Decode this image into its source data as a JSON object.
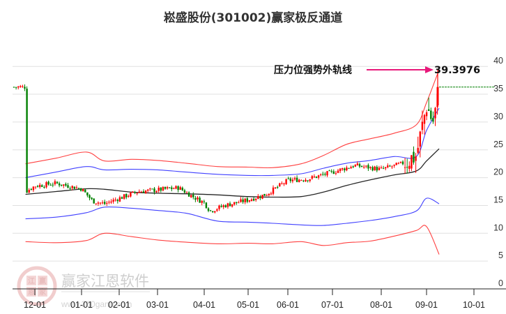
{
  "title": "崧盛股份(301002)赢家极反通道",
  "annotation": {
    "label": "压力位强势外轨线",
    "value": "39.3976",
    "arrow_color": "#e8197a"
  },
  "watermark": {
    "name": "赢家江恩软件",
    "url": "www.360gann.com",
    "logo_chars": [
      "江",
      "赢",
      "恩",
      "家"
    ]
  },
  "colors": {
    "up": "#ff0000",
    "down": "#008000",
    "outer_band": "#ff0000",
    "inner_band": "#0000ff",
    "mid_line": "#000000",
    "resistance_line": "#008000",
    "grid": "#e0e0e0"
  },
  "chart_data": {
    "type": "candlestick",
    "title": "崧盛股份(301002)赢家极反通道",
    "xlabel": "",
    "ylabel": "",
    "ylim": [
      0,
      40
    ],
    "yticks": [
      0,
      5,
      10,
      15,
      20,
      25,
      30,
      35,
      40
    ],
    "xticks": [
      "12-01",
      "01-01",
      "02-01",
      "03-01",
      "04-01",
      "05-01",
      "06-01",
      "07-01",
      "08-01",
      "09-01",
      "10-01"
    ],
    "grid": true,
    "annotations": [
      {
        "text": "压力位强势外轨线",
        "value": 39.3976,
        "type": "arrow-label"
      }
    ],
    "resistance_level": 36.3,
    "series": [
      {
        "name": "outer_upper_band",
        "color": "#ff0000",
        "x": [
          "11-25",
          "12-15",
          "01-05",
          "01-20",
          "02-10",
          "03-01",
          "03-20",
          "04-10",
          "05-01",
          "05-20",
          "06-10",
          "06-25",
          "07-10",
          "07-25",
          "08-10",
          "08-25",
          "09-01",
          "09-10"
        ],
        "values": [
          22.5,
          23.5,
          24.6,
          23.0,
          23.3,
          23.1,
          22.6,
          22.0,
          21.9,
          21.8,
          22.5,
          24.0,
          26.0,
          27.0,
          28.0,
          29.5,
          33.5,
          39.4
        ]
      },
      {
        "name": "inner_upper_band",
        "color": "#0000ff",
        "x": [
          "11-25",
          "12-15",
          "01-05",
          "01-20",
          "02-10",
          "03-01",
          "03-20",
          "04-10",
          "05-01",
          "05-20",
          "06-10",
          "06-25",
          "07-10",
          "07-25",
          "08-10",
          "08-25",
          "09-01",
          "09-10"
        ],
        "values": [
          20.0,
          21.0,
          22.0,
          21.4,
          21.5,
          21.4,
          21.0,
          20.6,
          20.4,
          20.4,
          20.7,
          21.7,
          22.6,
          23.1,
          23.8,
          23.8,
          28.5,
          32.5
        ]
      },
      {
        "name": "mid_line",
        "color": "#000000",
        "x": [
          "11-25",
          "12-15",
          "01-05",
          "01-20",
          "02-10",
          "03-01",
          "03-20",
          "04-10",
          "05-01",
          "05-20",
          "06-10",
          "06-25",
          "07-10",
          "07-25",
          "08-10",
          "08-25",
          "09-01",
          "09-10"
        ],
        "values": [
          17.0,
          17.5,
          18.0,
          17.9,
          17.4,
          17.2,
          17.1,
          16.9,
          16.6,
          16.5,
          16.6,
          17.4,
          18.6,
          19.6,
          20.5,
          21.2,
          23.0,
          25.2
        ]
      },
      {
        "name": "inner_lower_band",
        "color": "#0000ff",
        "x": [
          "11-25",
          "12-15",
          "01-05",
          "01-20",
          "02-10",
          "03-01",
          "03-20",
          "04-10",
          "05-01",
          "05-20",
          "06-10",
          "06-25",
          "07-10",
          "07-25",
          "08-10",
          "08-25",
          "09-01",
          "09-10"
        ],
        "values": [
          12.6,
          12.9,
          13.7,
          14.7,
          14.5,
          14.1,
          13.6,
          12.2,
          12.0,
          11.8,
          11.5,
          11.4,
          11.8,
          12.3,
          13.0,
          14.0,
          16.3,
          15.3
        ]
      },
      {
        "name": "outer_lower_band",
        "color": "#ff0000",
        "x": [
          "11-25",
          "12-15",
          "01-05",
          "01-20",
          "02-10",
          "03-01",
          "03-20",
          "04-10",
          "05-01",
          "05-20",
          "06-10",
          "06-25",
          "07-10",
          "07-25",
          "08-10",
          "08-25",
          "09-01",
          "09-10"
        ],
        "values": [
          8.5,
          8.3,
          8.7,
          10.0,
          9.4,
          8.8,
          8.4,
          8.1,
          8.2,
          8.1,
          8.5,
          7.8,
          8.3,
          8.6,
          9.5,
          10.5,
          11.2,
          6.2
        ]
      },
      {
        "name": "close_price",
        "color": "#ff0000",
        "x": [
          "11-25",
          "12-01",
          "12-15",
          "01-01",
          "01-10",
          "01-20",
          "02-01",
          "02-15",
          "03-01",
          "03-15",
          "03-25",
          "04-01",
          "04-05",
          "04-15",
          "05-01",
          "05-15",
          "06-01",
          "06-15",
          "07-01",
          "07-15",
          "08-01",
          "08-15",
          "08-25",
          "09-01",
          "09-05",
          "09-10"
        ],
        "values": [
          17.5,
          18.5,
          19.0,
          18.0,
          15.8,
          15.3,
          16.3,
          17.5,
          17.8,
          18.2,
          16.5,
          15.5,
          14.0,
          15.0,
          16.0,
          17.0,
          19.5,
          19.8,
          21.0,
          22.2,
          21.5,
          22.5,
          24.0,
          33.0,
          30.0,
          36.3
        ]
      }
    ]
  }
}
